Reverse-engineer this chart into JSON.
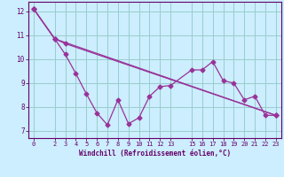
{
  "xlabel": "Windchill (Refroidissement éolien,°C)",
  "bg_color": "#cceeff",
  "grid_color": "#99cccc",
  "line_color": "#993399",
  "xlim": [
    -0.5,
    23.5
  ],
  "ylim": [
    6.7,
    12.4
  ],
  "xticks": [
    0,
    2,
    3,
    4,
    5,
    6,
    7,
    8,
    9,
    10,
    11,
    12,
    13,
    15,
    16,
    17,
    18,
    19,
    20,
    21,
    22,
    23
  ],
  "yticks": [
    7,
    8,
    9,
    10,
    11,
    12
  ],
  "line1_x": [
    0,
    2,
    3,
    4,
    5,
    6,
    7,
    8,
    9,
    10,
    11,
    12,
    13,
    15,
    16,
    17,
    18,
    19,
    20,
    21,
    22,
    23
  ],
  "line1_y": [
    12.1,
    10.85,
    10.2,
    9.4,
    8.55,
    7.75,
    7.25,
    8.3,
    7.3,
    7.55,
    8.45,
    8.85,
    8.9,
    9.55,
    9.55,
    9.9,
    9.1,
    9.0,
    8.3,
    8.45,
    7.65,
    7.65
  ],
  "line2_x": [
    0,
    2,
    3,
    23
  ],
  "line2_y": [
    12.1,
    10.85,
    10.65,
    7.65
  ],
  "line3_x": [
    0,
    2,
    23
  ],
  "line3_y": [
    12.1,
    10.85,
    7.65
  ]
}
